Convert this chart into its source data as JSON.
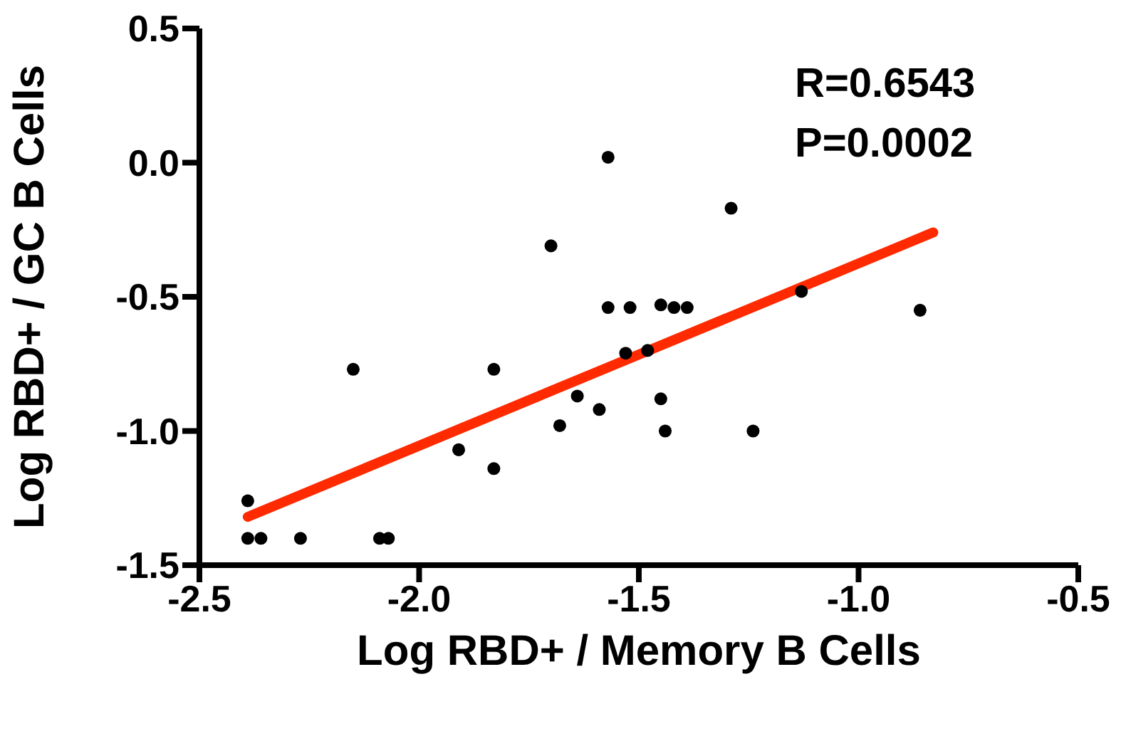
{
  "chart_data": {
    "type": "scatter",
    "xlabel": "Log RBD+ / Memory B Cells",
    "ylabel": "Log RBD+ / GC B Cells",
    "annotations": [
      "R=0.6543",
      "P=0.0002"
    ],
    "xlim": [
      -2.5,
      -0.5
    ],
    "xticks": [
      -2.5,
      {
        "value": -2,
        "label": "-2.0"
      },
      -1.5,
      {
        "value": -1,
        "label": "-1.0"
      },
      -0.5
    ],
    "ylim": [
      -1.5,
      0.5
    ],
    "yticks": [
      -1.5,
      {
        "value": -1,
        "label": "-1.0"
      },
      -0.5,
      {
        "value": 0,
        "label": "0.0"
      },
      0.5
    ],
    "grid": false,
    "legend": false,
    "series": [
      {
        "marker": "circle",
        "color": "#000000",
        "x": [
          -2.39,
          -2.39,
          -2.36,
          -2.27,
          -2.09,
          -2.07,
          -2.15,
          -1.91,
          -1.83,
          -1.83,
          -1.7,
          -1.68,
          -1.64,
          -1.59,
          -1.57,
          -1.57,
          -1.52,
          -1.53,
          -1.48,
          -1.45,
          -1.42,
          -1.39,
          -1.45,
          -1.44,
          -1.29,
          -1.24,
          -1.13,
          -0.86
        ],
        "values": [
          -1.26,
          -1.4,
          -1.4,
          -1.4,
          -1.4,
          -1.4,
          -0.77,
          -1.07,
          -0.77,
          -1.14,
          -0.31,
          -0.98,
          -0.87,
          -0.92,
          0.02,
          -0.54,
          -0.54,
          -0.71,
          -0.7,
          -0.53,
          -0.54,
          -0.54,
          -0.88,
          -1.0,
          -0.17,
          -1.0,
          -0.48,
          -0.55
        ]
      },
      {
        "type": "line",
        "color": "#ff2a00",
        "x": [
          -2.39,
          -0.83
        ],
        "values": [
          -1.32,
          -0.26
        ]
      }
    ]
  }
}
